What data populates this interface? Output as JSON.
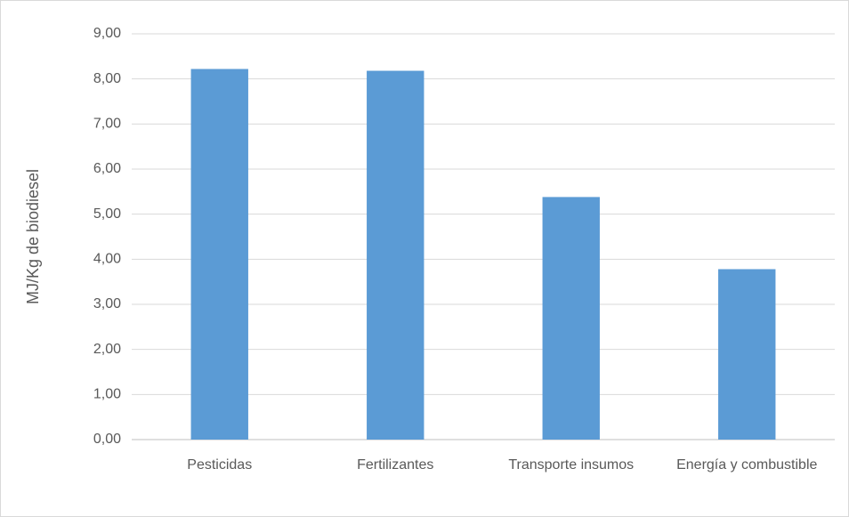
{
  "chart_data": {
    "type": "bar",
    "y_label": "MJ/Kg de biodiesel",
    "categories": [
      "Pesticidas",
      "Fertilizantes",
      "Transporte insumos",
      "Energía y combustible"
    ],
    "values": [
      8.22,
      8.18,
      5.38,
      3.78
    ],
    "color": "#5b9bd5",
    "ylim": [
      0,
      9
    ],
    "yticks": [
      {
        "value": 0,
        "label": "0,00"
      },
      {
        "value": 1,
        "label": "1,00"
      },
      {
        "value": 2,
        "label": "2,00"
      },
      {
        "value": 3,
        "label": "3,00"
      },
      {
        "value": 4,
        "label": "4,00"
      },
      {
        "value": 5,
        "label": "5,00"
      },
      {
        "value": 6,
        "label": "6,00"
      },
      {
        "value": 7,
        "label": "7,00"
      },
      {
        "value": 8,
        "label": "8,00"
      },
      {
        "value": 9,
        "label": "9,00"
      }
    ],
    "grid": true
  }
}
